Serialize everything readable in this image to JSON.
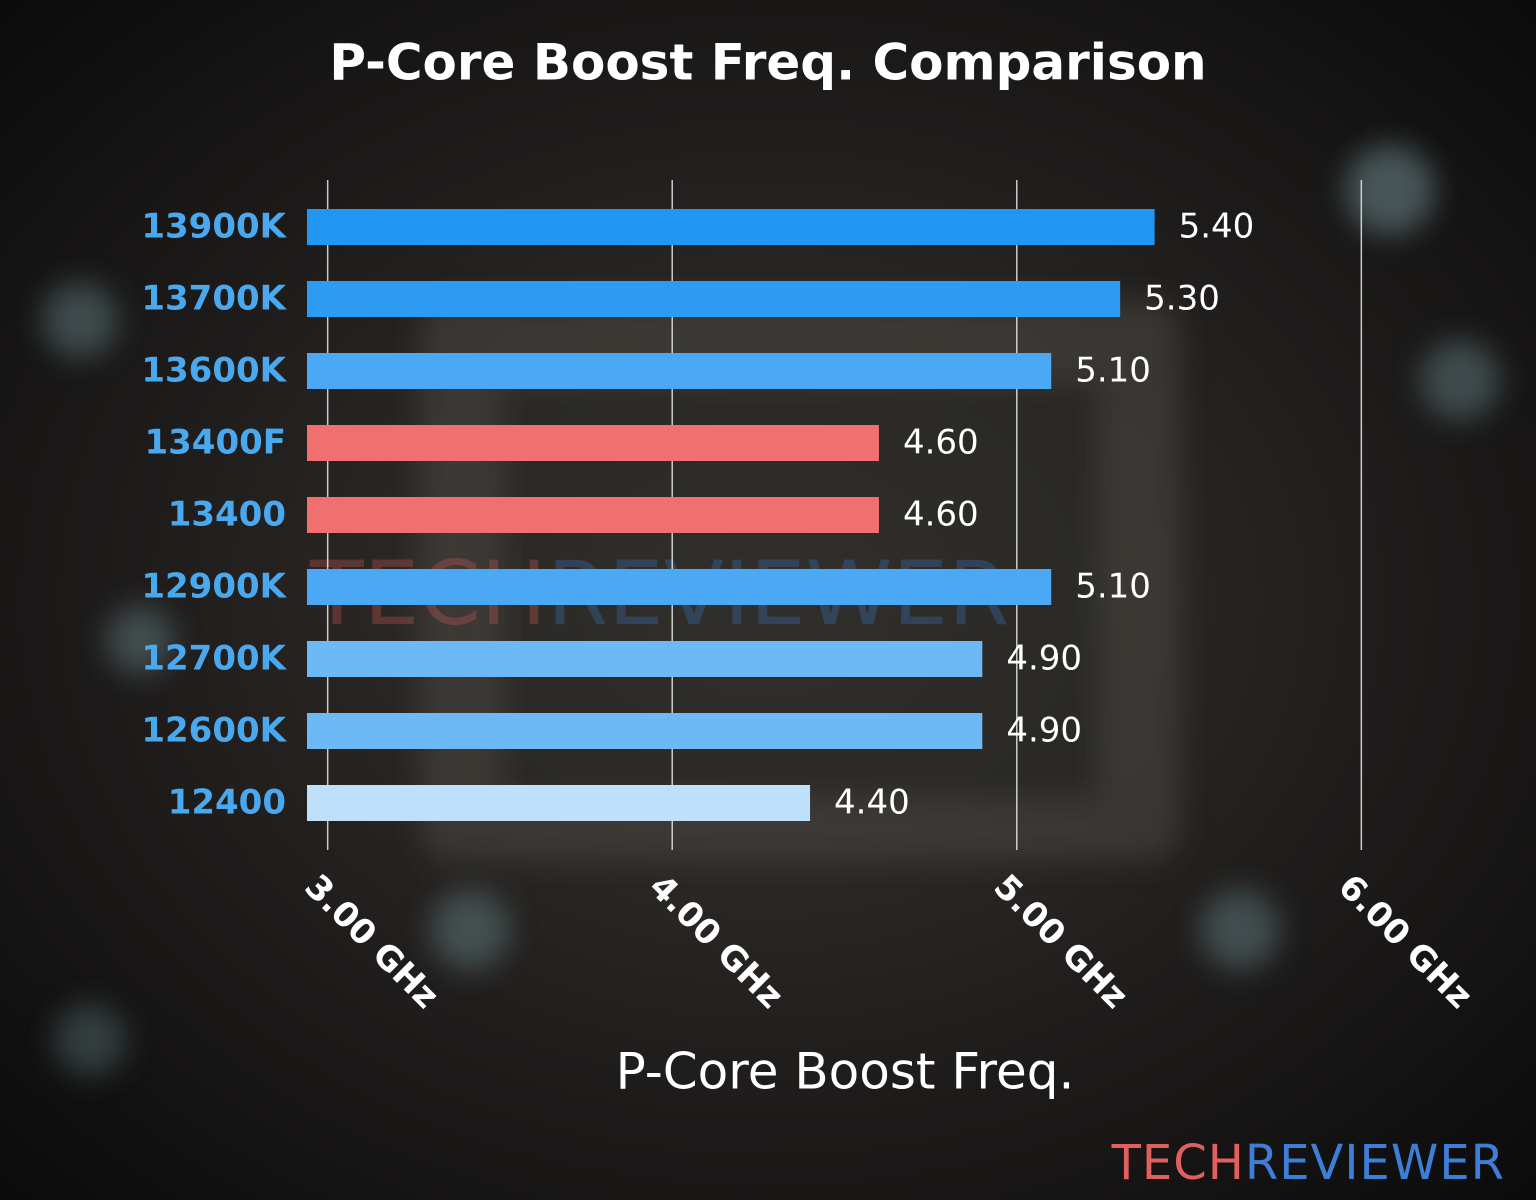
{
  "chart_data": {
    "type": "bar",
    "orientation": "horizontal",
    "title": "P-Core Boost Freq. Comparison",
    "x_label": "P-Core Boost Freq.",
    "categories": [
      "13900K",
      "13700K",
      "13600K",
      "13400F",
      "13400",
      "12900K",
      "12700K",
      "12600K",
      "12400"
    ],
    "values": [
      5.4,
      5.3,
      5.1,
      4.6,
      4.6,
      5.1,
      4.9,
      4.9,
      4.4
    ],
    "value_labels": [
      "5.40",
      "5.30",
      "5.10",
      "4.60",
      "4.60",
      "5.10",
      "4.90",
      "4.90",
      "4.40"
    ],
    "colors": [
      "#2196f3",
      "#2e9bf3",
      "#4aa8f4",
      "#f07070",
      "#f07070",
      "#4aa8f4",
      "#6db9f6",
      "#6db9f6",
      "#bfe0fb"
    ],
    "xlim": [
      2.94,
      6.06
    ],
    "xticks": [
      {
        "value": 3,
        "label": "3.00 GHz"
      },
      {
        "value": 4,
        "label": "4.00 GHz"
      },
      {
        "value": 5,
        "label": "5.00 GHz"
      },
      {
        "value": 6,
        "label": "6.00 GHz"
      }
    ],
    "grid": true,
    "watermark": {
      "left": "TECH",
      "right": "REVIEWER"
    }
  }
}
